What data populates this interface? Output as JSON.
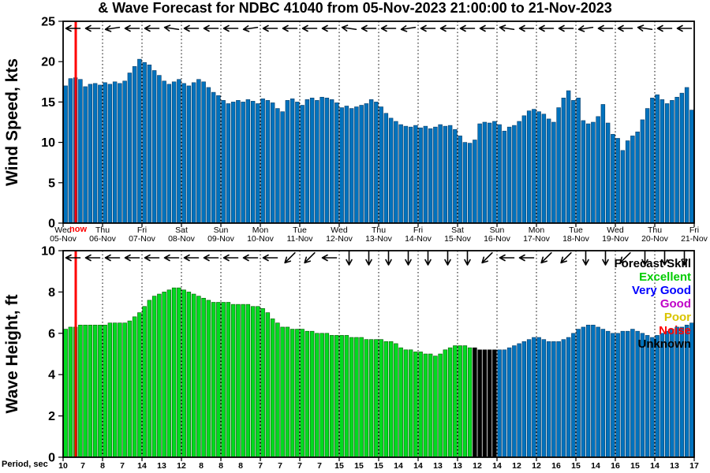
{
  "title": "& Wave Forecast for NDBC 41040 from 05-Nov-2023 21:00:00 to 21-Nov-2023",
  "now_label": "now",
  "now_color": "#ff0000",
  "period_label": "Period, sec",
  "legend": {
    "title": "Forecast Skill",
    "entries": [
      {
        "label": "Excellent",
        "color": "#00CC00"
      },
      {
        "label": "Very Good",
        "color": "#0000FF"
      },
      {
        "label": "Good",
        "color": "#C000C8"
      },
      {
        "label": "Poor",
        "color": "#D9C400"
      },
      {
        "label": "Noise",
        "color": "#FF0000"
      },
      {
        "label": "Unknown",
        "color": "#000000"
      }
    ]
  },
  "chart_data": [
    {
      "type": "bar",
      "title": "Wind Speed forecast",
      "ylabel": "Wind Speed, kts",
      "ylim": [
        0,
        25
      ],
      "yticks": [
        0,
        5,
        10,
        15,
        20,
        25
      ],
      "bar_color": "#0072BD",
      "bar_edge": "#0a3d66",
      "grid": "vertical-dotted-daily",
      "day_labels": [
        {
          "dow": "Wed",
          "date": "05-Nov"
        },
        {
          "dow": "Thu",
          "date": "06-Nov"
        },
        {
          "dow": "Fri",
          "date": "07-Nov"
        },
        {
          "dow": "Sat",
          "date": "08-Nov"
        },
        {
          "dow": "Sun",
          "date": "09-Nov"
        },
        {
          "dow": "Mon",
          "date": "10-Nov"
        },
        {
          "dow": "Tue",
          "date": "11-Nov"
        },
        {
          "dow": "Wed",
          "date": "12-Nov"
        },
        {
          "dow": "Thu",
          "date": "13-Nov"
        },
        {
          "dow": "Fri",
          "date": "14-Nov"
        },
        {
          "dow": "Sat",
          "date": "15-Nov"
        },
        {
          "dow": "Sun",
          "date": "16-Nov"
        },
        {
          "dow": "Mon",
          "date": "17-Nov"
        },
        {
          "dow": "Tue",
          "date": "18-Nov"
        },
        {
          "dow": "Wed",
          "date": "19-Nov"
        },
        {
          "dow": "Thu",
          "date": "20-Nov"
        },
        {
          "dow": "Fri",
          "date": "21-Nov"
        }
      ],
      "values": [
        17.0,
        17.9,
        18.0,
        17.8,
        16.9,
        17.2,
        17.3,
        17.1,
        17.4,
        17.2,
        17.5,
        17.3,
        17.6,
        18.6,
        19.4,
        20.3,
        19.9,
        19.6,
        18.9,
        18.3,
        17.6,
        17.2,
        17.5,
        17.8,
        17.3,
        17.0,
        17.4,
        17.8,
        17.5,
        16.8,
        16.2,
        15.8,
        15.2,
        14.8,
        15.0,
        15.2,
        15.0,
        15.3,
        15.1,
        14.8,
        15.4,
        15.2,
        14.9,
        14.2,
        13.8,
        15.2,
        15.4,
        15.0,
        14.6,
        15.3,
        15.5,
        15.2,
        15.6,
        15.5,
        15.3,
        14.9,
        14.3,
        14.5,
        14.2,
        14.4,
        14.6,
        14.8,
        15.3,
        15.0,
        14.4,
        13.6,
        13.0,
        12.6,
        12.2,
        12.0,
        11.9,
        12.1,
        11.8,
        12.0,
        11.7,
        11.9,
        12.2,
        12.0,
        12.1,
        11.6,
        10.8,
        10.0,
        9.9,
        10.3,
        12.3,
        12.5,
        12.4,
        12.6,
        12.2,
        11.4,
        11.9,
        12.1,
        12.6,
        13.3,
        13.9,
        14.1,
        13.8,
        13.5,
        12.9,
        12.5,
        14.3,
        15.5,
        16.4,
        15.2,
        15.5,
        12.7,
        12.3,
        12.5,
        13.2,
        14.7,
        12.4,
        11.0,
        10.5,
        9.0,
        10.2,
        10.8,
        11.3,
        12.8,
        14.2,
        15.5,
        15.9,
        15.3,
        14.8,
        15.2,
        15.6,
        16.1,
        16.8,
        14.0
      ],
      "arrow_angles": [
        180,
        180,
        172,
        180,
        180,
        188,
        180,
        180,
        180,
        172,
        180,
        180,
        180,
        180,
        188,
        180,
        180,
        172,
        180,
        180,
        180,
        180,
        188,
        180,
        180,
        180,
        172,
        180,
        180,
        188,
        180,
        180
      ]
    },
    {
      "type": "bar",
      "title": "Wave Height forecast colored by Forecast Skill",
      "ylabel": "Wave Height, ft",
      "ylim": [
        0,
        10
      ],
      "yticks": [
        0,
        2,
        4,
        6,
        8,
        10
      ],
      "bar_color": "#00DB1F",
      "bar_edge": "#005a00",
      "grid": "vertical-dotted-daily",
      "skill_segments": [
        {
          "from": 0,
          "to": 82,
          "skill": "Excellent",
          "color": "#00DB1F",
          "edge": "#005a00"
        },
        {
          "from": 83,
          "to": 87,
          "skill": "Unknown",
          "color": "#000000",
          "edge": "#000000"
        },
        {
          "from": 88,
          "to": 127,
          "skill": "Very Good",
          "color": "#0072BD",
          "edge": "#0a3d66"
        }
      ],
      "values": [
        6.2,
        6.3,
        6.3,
        6.4,
        6.4,
        6.4,
        6.4,
        6.4,
        6.4,
        6.5,
        6.5,
        6.5,
        6.5,
        6.6,
        6.8,
        7.0,
        7.3,
        7.6,
        7.8,
        7.9,
        8.0,
        8.1,
        8.2,
        8.2,
        8.1,
        8.0,
        7.9,
        7.8,
        7.7,
        7.6,
        7.5,
        7.5,
        7.5,
        7.5,
        7.4,
        7.4,
        7.4,
        7.4,
        7.3,
        7.3,
        7.2,
        7.0,
        6.7,
        6.5,
        6.3,
        6.3,
        6.2,
        6.2,
        6.2,
        6.1,
        6.1,
        6.0,
        6.0,
        6.0,
        5.9,
        5.9,
        5.9,
        5.9,
        5.8,
        5.8,
        5.8,
        5.7,
        5.7,
        5.7,
        5.7,
        5.6,
        5.6,
        5.5,
        5.3,
        5.2,
        5.2,
        5.1,
        5.1,
        5.0,
        5.0,
        4.9,
        5.0,
        5.2,
        5.3,
        5.4,
        5.4,
        5.4,
        5.3,
        5.3,
        5.2,
        5.2,
        5.2,
        5.2,
        5.2,
        5.2,
        5.3,
        5.4,
        5.5,
        5.6,
        5.7,
        5.8,
        5.8,
        5.7,
        5.6,
        5.6,
        5.6,
        5.7,
        5.8,
        6.0,
        6.2,
        6.3,
        6.4,
        6.4,
        6.3,
        6.2,
        6.1,
        6.0,
        6.0,
        6.1,
        6.1,
        6.2,
        6.1,
        6.0,
        5.9,
        5.8,
        5.9,
        6.0,
        6.1,
        6.2,
        6.3,
        6.3,
        6.4,
        6.5
      ],
      "arrow_angles": [
        180,
        180,
        180,
        180,
        180,
        180,
        180,
        180,
        180,
        180,
        180,
        135,
        135,
        180,
        90,
        90,
        90,
        90,
        90,
        90,
        90,
        135,
        180,
        180,
        135,
        135,
        90,
        90,
        135,
        90,
        90,
        90
      ],
      "period_values": [
        10,
        7,
        8,
        7,
        14,
        13,
        12,
        8,
        8,
        8,
        7,
        7,
        7,
        7,
        15,
        15,
        15,
        14,
        14,
        13,
        13,
        12,
        14,
        12,
        12,
        16,
        15,
        14,
        16,
        15,
        14,
        13,
        17
      ]
    }
  ]
}
